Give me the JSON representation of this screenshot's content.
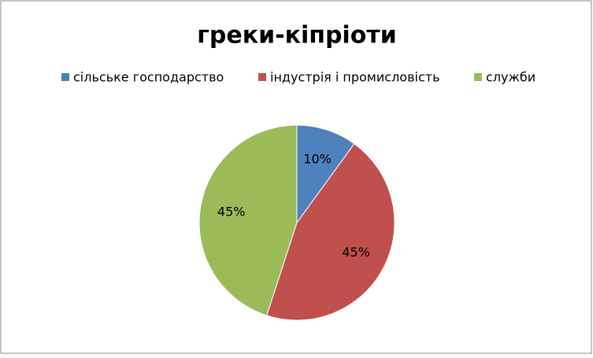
{
  "chart_data": {
    "type": "pie",
    "title": "греки-кіпріоти",
    "categories": [
      "сільське господарство",
      "індустрія і промисловість",
      "служби"
    ],
    "values": [
      10,
      45,
      45
    ],
    "value_labels": [
      "10%",
      "45%",
      "45%"
    ],
    "colors": [
      "#4f81bd",
      "#c0504d",
      "#9bbb59"
    ],
    "legend": "top"
  }
}
